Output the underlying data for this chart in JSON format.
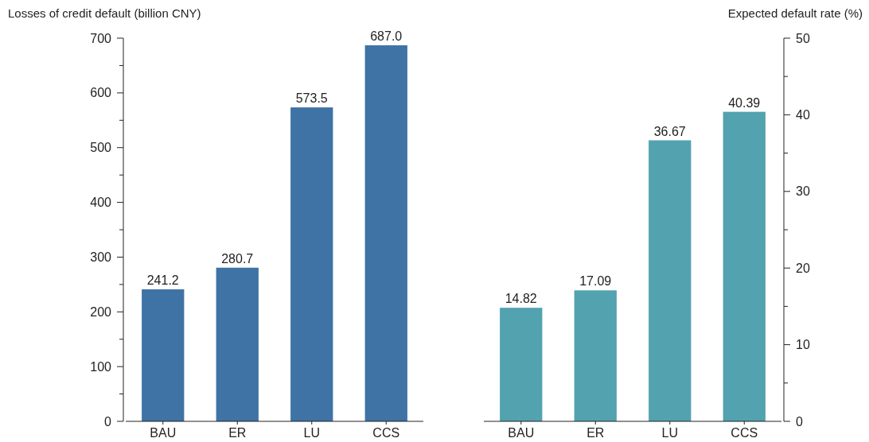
{
  "chart_data": [
    {
      "type": "bar",
      "ylabel": "Losses of credit default (billion CNY)",
      "categories": [
        "BAU",
        "ER",
        "LU",
        "CCS"
      ],
      "series": [
        {
          "color": "#3f73a5",
          "values": [
            241.2,
            280.7,
            573.5,
            687.0
          ],
          "value_labels": [
            "241.2",
            "280.7",
            "573.5",
            "687.0"
          ]
        }
      ],
      "ylim": [
        0,
        700
      ],
      "yticks": [
        0,
        {
          "value": 50,
          "label": null
        },
        100,
        {
          "value": 150,
          "label": null
        },
        200,
        {
          "value": 250,
          "label": null
        },
        300,
        {
          "value": 350,
          "label": null
        },
        400,
        {
          "value": 450,
          "label": null
        },
        500,
        {
          "value": 550,
          "label": null
        },
        600,
        {
          "value": 650,
          "label": null
        },
        700
      ],
      "grid": false
    },
    {
      "type": "bar",
      "y2label": "Expected default rate (%)",
      "categories": [
        "BAU",
        "ER",
        "LU",
        "CCS"
      ],
      "series": [
        {
          "color": "#53a2b0",
          "axis": "y2",
          "values": [
            14.82,
            17.09,
            36.67,
            40.39
          ],
          "value_labels": [
            "14.82",
            "17.09",
            "36.67",
            "40.39"
          ]
        }
      ],
      "y2lim": [
        0,
        50
      ],
      "y2ticks": [
        0,
        {
          "value": 5,
          "label": null
        },
        10,
        {
          "value": 15,
          "label": null
        },
        20,
        {
          "value": 25,
          "label": null
        },
        30,
        {
          "value": 35,
          "label": null
        },
        40,
        {
          "value": 45,
          "label": null
        },
        50
      ],
      "grid": false
    }
  ]
}
